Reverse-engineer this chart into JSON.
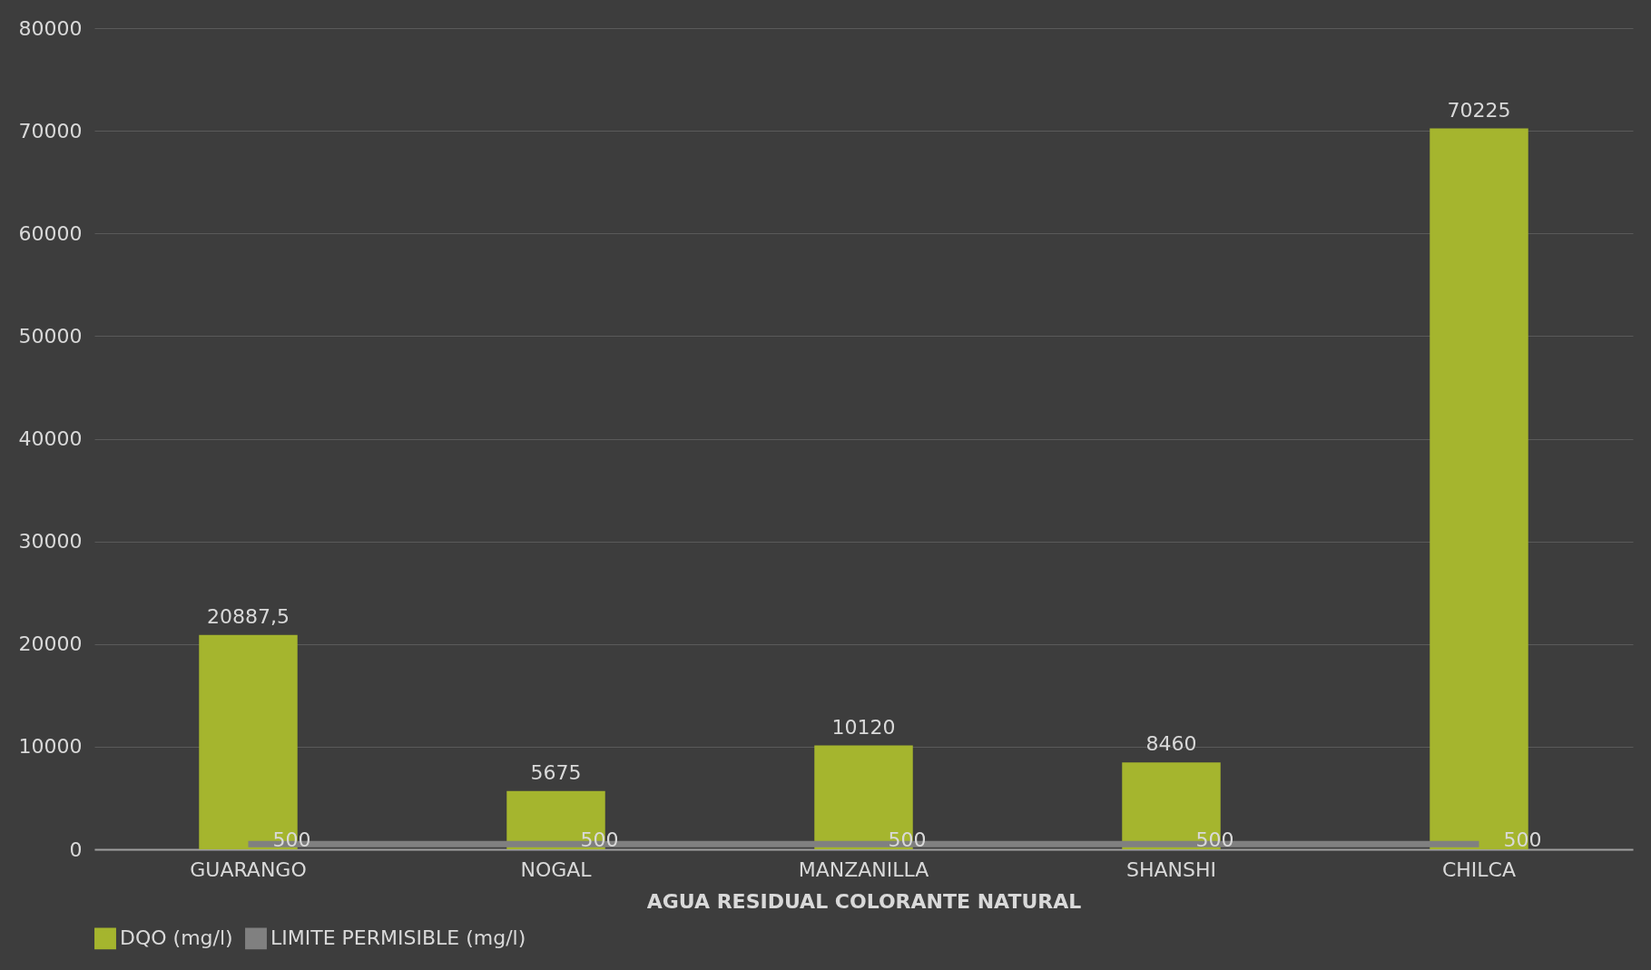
{
  "chart_data": {
    "type": "bar",
    "xlabel": "AGUA RESIDUAL COLORANTE NATURAL",
    "categories": [
      "GUARANGO",
      "NOGAL",
      "MANZANILLA",
      "SHANSHI",
      "CHILCA"
    ],
    "series": [
      {
        "name": "DQO (mg/l)",
        "color": "#a5b52e",
        "values": [
          20887.5,
          5675,
          10120,
          8460,
          70225
        ],
        "value_labels": [
          "20887,5",
          "5675",
          "10120",
          "8460",
          "70225"
        ]
      },
      {
        "name": "LIMITE PERMISIBLE (mg/l)",
        "type": "line",
        "color": "#808080",
        "values": [
          500,
          500,
          500,
          500,
          500
        ],
        "value_labels": [
          "500",
          "500",
          "500",
          "500",
          "500"
        ]
      }
    ],
    "ylim": [
      0,
      80000
    ],
    "yticks": [
      0,
      10000,
      20000,
      30000,
      40000,
      50000,
      60000,
      70000,
      80000
    ],
    "grid": "y",
    "legend": "bottom",
    "marker": "none",
    "line_style": "solid"
  }
}
